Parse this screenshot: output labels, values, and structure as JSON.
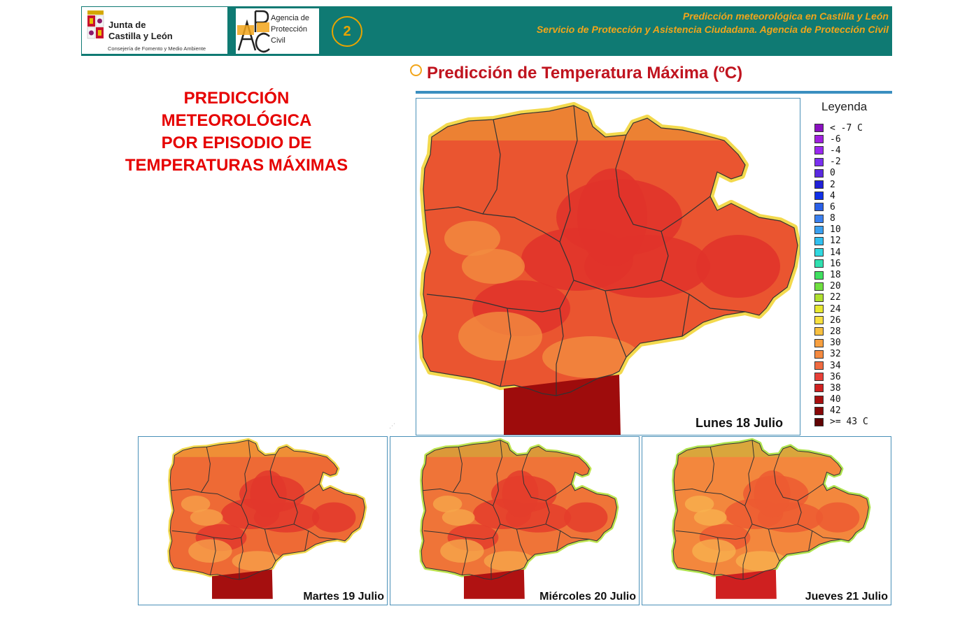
{
  "header": {
    "jcyl_line1": "Junta de",
    "jcyl_line2": "Castilla y León",
    "jcyl_line3": "Consejería de Fomento y Medio Ambiente",
    "apc_line1": "Agencia de",
    "apc_line2": "Protección",
    "apc_line3": "Civil",
    "page_number": "2",
    "line1": "Predicción meteorológica en Castilla y León",
    "line2": "Servicio de Protección y Asistencia Ciudadana. Agencia de Protección Civil"
  },
  "left_title": {
    "line1": "PREDICCIÓN",
    "line2": "METEOROLÓGICA",
    "line3": "POR EPISODIO DE",
    "line4": "TEMPERATURAS MÁXIMAS"
  },
  "map_title": "Predicción de Temperatura Máxima (ºC)",
  "maps": {
    "main": {
      "label": "Lunes 18 Julio",
      "fill": "#ea5530",
      "hot": "#e0322a",
      "veryhot": "#9e0c0c",
      "cool": "#f28c40",
      "coast": "#f2d53a"
    },
    "day2": {
      "label": "Martes 19 Julio",
      "fill": "#ee6a35",
      "hot": "#e2372b",
      "veryhot": "#a50f0f",
      "cool": "#f6a04a",
      "coast": "#f2d53a"
    },
    "day3": {
      "label": "Miércoles 20 Julio",
      "fill": "#ef7438",
      "hot": "#e43d2b",
      "veryhot": "#b01212",
      "cool": "#f6a64a",
      "coast": "#b8e03c"
    },
    "day4": {
      "label": "Jueves 21 Julio",
      "fill": "#f3873d",
      "hot": "#ec5a31",
      "veryhot": "#cf2020",
      "cool": "#f8b04e",
      "coast": "#a8e03c"
    }
  },
  "legend": {
    "title": "Leyenda",
    "items": [
      {
        "label": "< -7 C",
        "color": "#8a10c0"
      },
      {
        "label": "-6",
        "color": "#a020e0"
      },
      {
        "label": "-4",
        "color": "#9a28f0"
      },
      {
        "label": "-2",
        "color": "#7a30f0"
      },
      {
        "label": "0",
        "color": "#5a2ae0"
      },
      {
        "label": "2",
        "color": "#2020d8"
      },
      {
        "label": "4",
        "color": "#1030e8"
      },
      {
        "label": "6",
        "color": "#2a60e8"
      },
      {
        "label": "8",
        "color": "#3a80f0"
      },
      {
        "label": "10",
        "color": "#3aa0f0"
      },
      {
        "label": "12",
        "color": "#30c0f0"
      },
      {
        "label": "14",
        "color": "#30d8e0"
      },
      {
        "label": "16",
        "color": "#30e0b0"
      },
      {
        "label": "18",
        "color": "#40e060"
      },
      {
        "label": "20",
        "color": "#70e040"
      },
      {
        "label": "22",
        "color": "#b0e030"
      },
      {
        "label": "24",
        "color": "#e8e830"
      },
      {
        "label": "26",
        "color": "#f8e040"
      },
      {
        "label": "28",
        "color": "#f8c040"
      },
      {
        "label": "30",
        "color": "#f8a040"
      },
      {
        "label": "32",
        "color": "#f58a40"
      },
      {
        "label": "34",
        "color": "#f06a40"
      },
      {
        "label": "36",
        "color": "#e84038"
      },
      {
        "label": "38",
        "color": "#d02020"
      },
      {
        "label": "40",
        "color": "#a81010"
      },
      {
        "label": "42",
        "color": "#880808"
      },
      {
        "label": ">= 43 C",
        "color": "#600404"
      }
    ]
  }
}
